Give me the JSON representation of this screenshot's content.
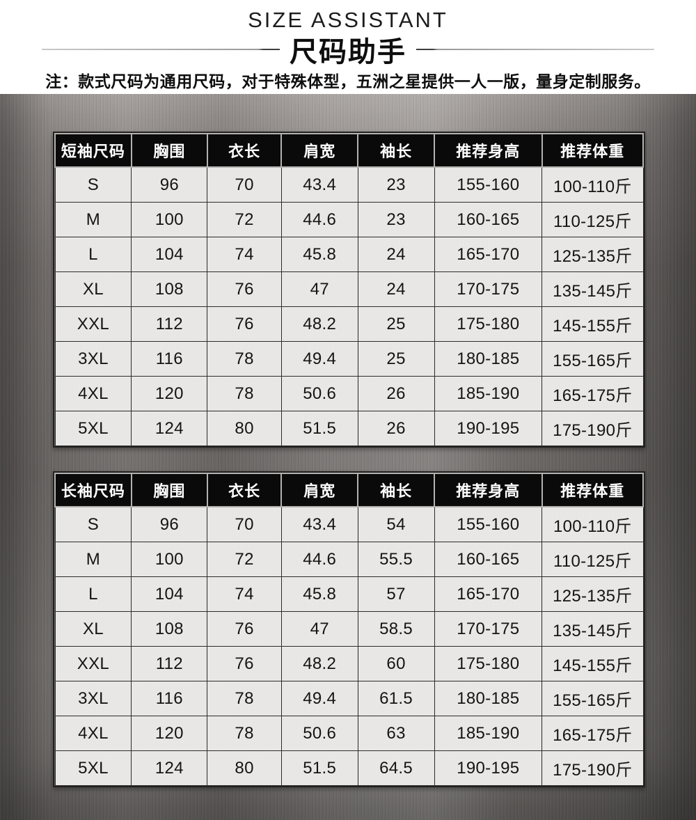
{
  "header": {
    "title_en": "SIZE ASSISTANT",
    "title_zh": "尺码助手",
    "note": "注：款式尺码为通用尺码，对于特殊体型，五洲之星提供一人一版，量身定制服务。"
  },
  "colors": {
    "header_cell_bg": "#0a0a0a",
    "header_cell_text": "#ffffff",
    "data_cell_bg": "#eae8e6",
    "data_cell_text": "#141414",
    "grid_dark": "#2e2c2a",
    "grid_light": "#b4b2b0",
    "metal_light": "#a49f9c",
    "metal_dark": "#5f5b59",
    "divider_line": "#9a9a9a"
  },
  "short_sleeve_table": {
    "columns": [
      "短袖尺码",
      "胸围",
      "衣长",
      "肩宽",
      "袖长",
      "推荐身高",
      "推荐体重"
    ],
    "rows": [
      [
        "S",
        "96",
        "70",
        "43.4",
        "23",
        "155-160",
        "100-110斤"
      ],
      [
        "M",
        "100",
        "72",
        "44.6",
        "23",
        "160-165",
        "110-125斤"
      ],
      [
        "L",
        "104",
        "74",
        "45.8",
        "24",
        "165-170",
        "125-135斤"
      ],
      [
        "XL",
        "108",
        "76",
        "47",
        "24",
        "170-175",
        "135-145斤"
      ],
      [
        "XXL",
        "112",
        "76",
        "48.2",
        "25",
        "175-180",
        "145-155斤"
      ],
      [
        "3XL",
        "116",
        "78",
        "49.4",
        "25",
        "180-185",
        "155-165斤"
      ],
      [
        "4XL",
        "120",
        "78",
        "50.6",
        "26",
        "185-190",
        "165-175斤"
      ],
      [
        "5XL",
        "124",
        "80",
        "51.5",
        "26",
        "190-195",
        "175-190斤"
      ]
    ]
  },
  "long_sleeve_table": {
    "columns": [
      "长袖尺码",
      "胸围",
      "衣长",
      "肩宽",
      "袖长",
      "推荐身高",
      "推荐体重"
    ],
    "rows": [
      [
        "S",
        "96",
        "70",
        "43.4",
        "54",
        "155-160",
        "100-110斤"
      ],
      [
        "M",
        "100",
        "72",
        "44.6",
        "55.5",
        "160-165",
        "110-125斤"
      ],
      [
        "L",
        "104",
        "74",
        "45.8",
        "57",
        "165-170",
        "125-135斤"
      ],
      [
        "XL",
        "108",
        "76",
        "47",
        "58.5",
        "170-175",
        "135-145斤"
      ],
      [
        "XXL",
        "112",
        "76",
        "48.2",
        "60",
        "175-180",
        "145-155斤"
      ],
      [
        "3XL",
        "116",
        "78",
        "49.4",
        "61.5",
        "180-185",
        "155-165斤"
      ],
      [
        "4XL",
        "120",
        "78",
        "50.6",
        "63",
        "185-190",
        "165-175斤"
      ],
      [
        "5XL",
        "124",
        "80",
        "51.5",
        "64.5",
        "190-195",
        "175-190斤"
      ]
    ]
  }
}
